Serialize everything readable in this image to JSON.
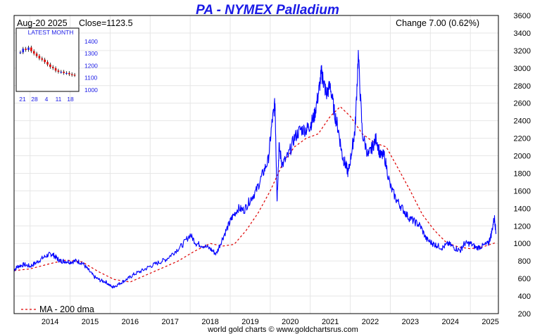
{
  "chart_data": {
    "type": "line",
    "title": "PA  -  NYMEX Palladium",
    "date_label": "Aug-20  2025",
    "close_label": "Close=1123.5",
    "change_label": "Change 7.00 (0.62%)",
    "footer": "world gold charts © www.goldchartsrus.com",
    "ylim": [
      200,
      3600
    ],
    "y_ticks": [
      200,
      400,
      600,
      800,
      1000,
      1200,
      1400,
      1600,
      1800,
      2000,
      2200,
      2400,
      2600,
      2800,
      3000,
      3200,
      3400,
      3600
    ],
    "xlim": [
      2013.6,
      2025.7
    ],
    "x_ticks": [
      "2014",
      "2015",
      "2016",
      "2017",
      "2018",
      "2019",
      "2020",
      "2021",
      "2022",
      "2023",
      "2024",
      "2025"
    ],
    "grid": true,
    "legend_position": "bottom-left",
    "series": [
      {
        "name": "",
        "color": "#0000ff",
        "x": [
          2013.6,
          2013.7,
          2013.85,
          2014.0,
          2014.15,
          2014.3,
          2014.45,
          2014.55,
          2014.65,
          2014.75,
          2014.85,
          2015.0,
          2015.15,
          2015.3,
          2015.45,
          2015.6,
          2015.75,
          2015.9,
          2016.05,
          2016.15,
          2016.3,
          2016.45,
          2016.6,
          2016.8,
          2017.0,
          2017.2,
          2017.4,
          2017.6,
          2017.8,
          2018.0,
          2018.15,
          2018.3,
          2018.5,
          2018.65,
          2018.8,
          2018.95,
          2019.05,
          2019.2,
          2019.35,
          2019.5,
          2019.65,
          2019.8,
          2019.95,
          2020.05,
          2020.12,
          2020.17,
          2020.22,
          2020.3,
          2020.45,
          2020.6,
          2020.75,
          2020.9,
          2021.0,
          2021.1,
          2021.2,
          2021.28,
          2021.33,
          2021.4,
          2021.5,
          2021.6,
          2021.7,
          2021.8,
          2021.88,
          2021.95,
          2022.05,
          2022.12,
          2022.2,
          2022.3,
          2022.45,
          2022.55,
          2022.65,
          2022.75,
          2022.85,
          2023.0,
          2023.15,
          2023.3,
          2023.45,
          2023.6,
          2023.75,
          2023.9,
          2024.05,
          2024.15,
          2024.3,
          2024.45,
          2024.6,
          2024.75,
          2024.85,
          2025.0,
          2025.15,
          2025.3,
          2025.45,
          2025.52,
          2025.6,
          2025.64
        ],
        "y": [
          700,
          740,
          760,
          740,
          780,
          830,
          870,
          880,
          840,
          800,
          800,
          790,
          800,
          780,
          700,
          620,
          580,
          560,
          500,
          520,
          560,
          600,
          650,
          690,
          740,
          780,
          820,
          900,
          980,
          1100,
          1000,
          980,
          940,
          880,
          1050,
          1200,
          1300,
          1400,
          1380,
          1500,
          1600,
          1780,
          1950,
          2400,
          2600,
          1500,
          2100,
          1900,
          2000,
          2200,
          2300,
          2300,
          2350,
          2450,
          2700,
          2950,
          2850,
          2700,
          2800,
          2500,
          2300,
          2000,
          1900,
          1800,
          2100,
          2300,
          3150,
          2250,
          2000,
          2100,
          2200,
          2000,
          2000,
          1650,
          1500,
          1400,
          1300,
          1250,
          1200,
          1050,
          1000,
          980,
          950,
          1000,
          950,
          920,
          1000,
          1000,
          950,
          970,
          1000,
          1100,
          1300,
          1120
        ]
      },
      {
        "name": "MA - 200 dma",
        "color": "#dd0000",
        "x": [
          2013.6,
          2014.0,
          2014.5,
          2014.9,
          2015.3,
          2015.7,
          2016.1,
          2016.5,
          2016.9,
          2017.3,
          2017.7,
          2018.1,
          2018.5,
          2018.8,
          2019.1,
          2019.4,
          2019.7,
          2020.0,
          2020.3,
          2020.6,
          2020.9,
          2021.2,
          2021.5,
          2021.75,
          2022.0,
          2022.3,
          2022.6,
          2022.9,
          2023.2,
          2023.5,
          2023.8,
          2024.1,
          2024.4,
          2024.7,
          2025.0,
          2025.3,
          2025.64
        ],
        "y": [
          690,
          710,
          770,
          810,
          790,
          680,
          590,
          560,
          640,
          720,
          800,
          910,
          1000,
          970,
          990,
          1150,
          1350,
          1600,
          1900,
          2100,
          2200,
          2250,
          2450,
          2560,
          2450,
          2250,
          2150,
          2100,
          1850,
          1600,
          1330,
          1150,
          1010,
          960,
          940,
          960,
          1010
        ]
      }
    ],
    "inset": {
      "title": "LATEST MONTH",
      "y_ticks": [
        1000,
        1100,
        1200,
        1300,
        1400
      ],
      "x_ticks": [
        "21",
        "28",
        "4",
        "11",
        "18"
      ],
      "ylim": [
        1000,
        1440
      ],
      "bars": [
        1310,
        1340,
        1330,
        1350,
        1320,
        1300,
        1280,
        1260,
        1250,
        1230,
        1210,
        1190,
        1180,
        1160,
        1150,
        1150,
        1140,
        1140,
        1130,
        1125,
        1123
      ]
    }
  }
}
